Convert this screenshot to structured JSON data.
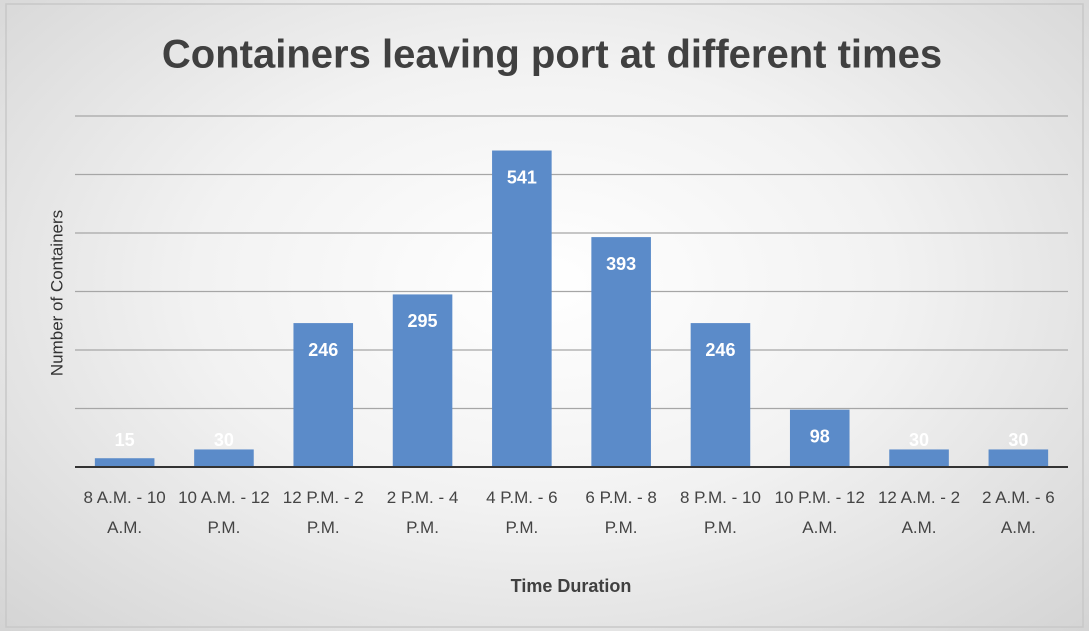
{
  "chart_data": {
    "type": "bar",
    "title": "Containers leaving port at different times",
    "x_label": "Time Duration",
    "y_label": "Number of Containers",
    "categories": [
      "8 A.M. - 10 A.M.",
      "10 A.M. - 12 P.M.",
      "12 P.M. - 2 P.M.",
      "2 P.M. - 4 P.M.",
      "4 P.M. - 6 P.M.",
      "6 P.M. - 8 P.M.",
      "8 P.M. - 10 P.M.",
      "10 P.M. - 12 A.M.",
      "12 A.M. - 2 A.M.",
      "2 A.M. - 6 A.M."
    ],
    "values": [
      15,
      30,
      246,
      295,
      541,
      393,
      246,
      98,
      30,
      30
    ],
    "color": "#5b8bc9",
    "ylim": [
      0,
      600
    ],
    "yticks": [
      100,
      200,
      300,
      400,
      500,
      600
    ],
    "grid": true
  }
}
